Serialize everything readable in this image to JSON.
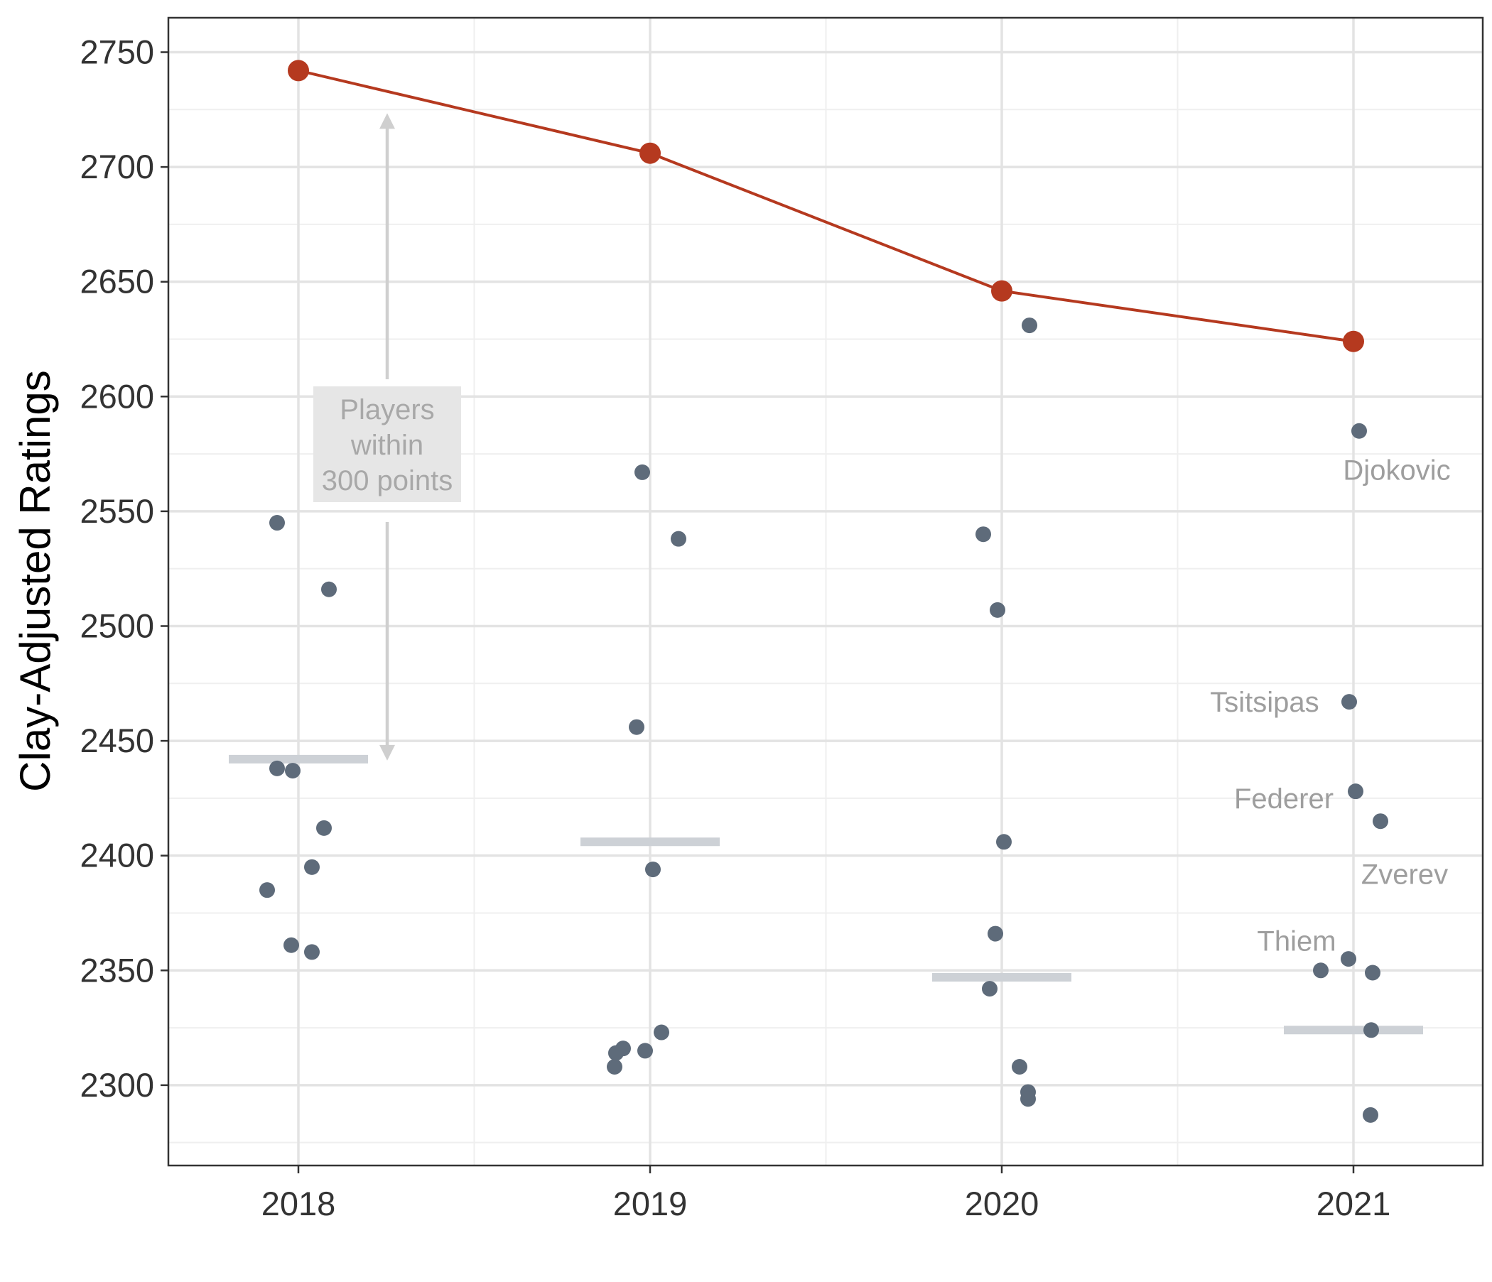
{
  "chart_data": {
    "type": "scatter",
    "xlabel": "",
    "ylabel": "Clay-Adjusted Ratings",
    "categories": [
      "2018",
      "2019",
      "2020",
      "2021"
    ],
    "ylim": [
      2265,
      2765
    ],
    "yticks": [
      2300,
      2350,
      2400,
      2450,
      2500,
      2550,
      2600,
      2650,
      2700,
      2750
    ],
    "grid": true,
    "legend": "none",
    "colors": {
      "top_line": "#b5391f",
      "points": "#5e6b7a",
      "threshold": "#cdd1d6",
      "annotation": "#9e9e9e",
      "grid_major": "#e3e3e3",
      "grid_minor": "#efefef"
    },
    "top_rating_line": {
      "x": [
        "2018",
        "2019",
        "2020",
        "2021"
      ],
      "y": [
        2742,
        2706,
        2646,
        2624
      ]
    },
    "players": [
      {
        "x": "2018",
        "y": 2545
      },
      {
        "x": "2018",
        "y": 2516
      },
      {
        "x": "2018",
        "y": 2438
      },
      {
        "x": "2018",
        "y": 2437
      },
      {
        "x": "2018",
        "y": 2412
      },
      {
        "x": "2018",
        "y": 2395
      },
      {
        "x": "2018",
        "y": 2385
      },
      {
        "x": "2018",
        "y": 2361
      },
      {
        "x": "2018",
        "y": 2358
      },
      {
        "x": "2019",
        "y": 2567
      },
      {
        "x": "2019",
        "y": 2538
      },
      {
        "x": "2019",
        "y": 2456
      },
      {
        "x": "2019",
        "y": 2394
      },
      {
        "x": "2019",
        "y": 2323
      },
      {
        "x": "2019",
        "y": 2316
      },
      {
        "x": "2019",
        "y": 2315
      },
      {
        "x": "2019",
        "y": 2314
      },
      {
        "x": "2019",
        "y": 2308
      },
      {
        "x": "2020",
        "y": 2631
      },
      {
        "x": "2020",
        "y": 2540
      },
      {
        "x": "2020",
        "y": 2507
      },
      {
        "x": "2020",
        "y": 2406
      },
      {
        "x": "2020",
        "y": 2366
      },
      {
        "x": "2020",
        "y": 2342
      },
      {
        "x": "2020",
        "y": 2308
      },
      {
        "x": "2020",
        "y": 2297
      },
      {
        "x": "2020",
        "y": 2294
      },
      {
        "x": "2021",
        "y": 2585
      },
      {
        "x": "2021",
        "y": 2467
      },
      {
        "x": "2021",
        "y": 2428
      },
      {
        "x": "2021",
        "y": 2415
      },
      {
        "x": "2021",
        "y": 2355
      },
      {
        "x": "2021",
        "y": 2350
      },
      {
        "x": "2021",
        "y": 2349
      },
      {
        "x": "2021",
        "y": 2324
      },
      {
        "x": "2021",
        "y": 2287
      }
    ],
    "threshold_lines": [
      {
        "x": "2018",
        "y": 2442
      },
      {
        "x": "2019",
        "y": 2406
      },
      {
        "x": "2020",
        "y": 2347
      },
      {
        "x": "2021",
        "y": 2324
      }
    ],
    "player_labels": [
      {
        "text": "Djokovic",
        "x": "2021",
        "y": 2568
      },
      {
        "text": "Tsitsipas",
        "x": "2021",
        "y": 2467
      },
      {
        "text": "Federer",
        "x": "2021",
        "y": 2425
      },
      {
        "text": "Zverev",
        "x": "2021",
        "y": 2392
      },
      {
        "text": "Thiem",
        "x": "2021",
        "y": 2363
      }
    ],
    "annotation": {
      "lines": [
        "Players",
        "within",
        "300 points"
      ],
      "x": "2018",
      "arrow_from": 2742,
      "arrow_to": 2442
    }
  }
}
